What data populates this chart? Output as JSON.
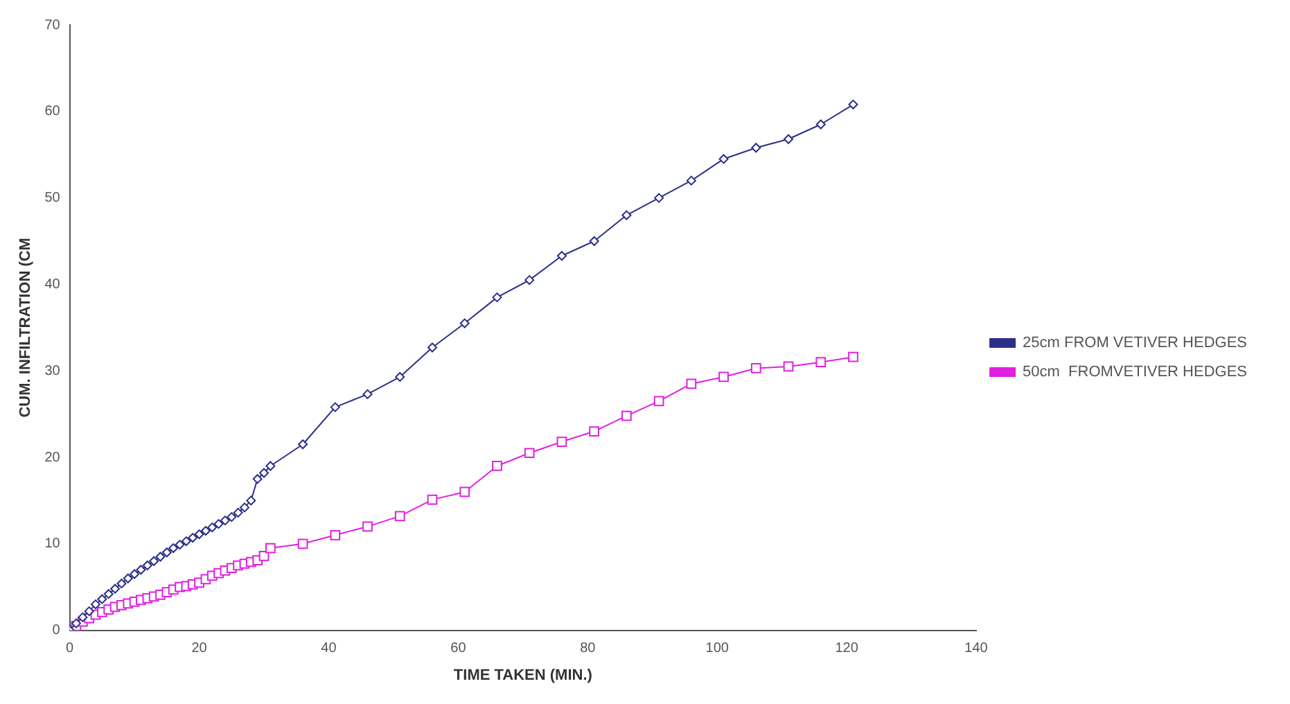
{
  "chart_data": {
    "type": "line",
    "xlabel": "TIME TAKEN (MIN.)",
    "ylabel": "CUM. INFILTRATION (CM",
    "xlim": [
      0,
      140
    ],
    "xticks": [
      0,
      20,
      40,
      60,
      80,
      100,
      120,
      140
    ],
    "ylim": [
      0,
      70
    ],
    "yticks": [
      0,
      10,
      20,
      30,
      40,
      50,
      60,
      70
    ],
    "grid": false,
    "legend": "right",
    "line_style": "solid",
    "series": [
      {
        "name": "25cm FROM VETIVER HEDGES",
        "color": "#2b2f8a",
        "marker": "diamond",
        "x": [
          0,
          1,
          2,
          3,
          4,
          5,
          6,
          7,
          8,
          9,
          10,
          11,
          12,
          13,
          14,
          15,
          16,
          17,
          18,
          19,
          20,
          21,
          22,
          23,
          24,
          25,
          26,
          27,
          28,
          29,
          30,
          31,
          36,
          41,
          46,
          51,
          56,
          61,
          66,
          71,
          76,
          81,
          86,
          91,
          96,
          101,
          106,
          111,
          116,
          121
        ],
        "values": [
          0,
          0.8,
          1.5,
          2.2,
          3,
          3.6,
          4.2,
          4.8,
          5.4,
          6,
          6.5,
          7,
          7.5,
          8,
          8.5,
          9,
          9.5,
          9.9,
          10.3,
          10.7,
          11.1,
          11.5,
          11.9,
          12.3,
          12.7,
          13.1,
          13.6,
          14.2,
          15,
          17.5,
          18.2,
          19,
          21.5,
          25.8,
          27.3,
          29.3,
          32.7,
          35.5,
          38.5,
          40.5,
          43.3,
          45,
          48,
          50,
          52,
          54.5,
          55.8,
          56.8,
          58.5,
          60.8
        ]
      },
      {
        "name": "50cm  FROMVETIVER HEDGES",
        "color": "#e020e0",
        "marker": "square",
        "x": [
          0,
          1,
          2,
          3,
          4,
          5,
          6,
          7,
          8,
          9,
          10,
          11,
          12,
          13,
          14,
          15,
          16,
          17,
          18,
          19,
          20,
          21,
          22,
          23,
          24,
          25,
          26,
          27,
          28,
          29,
          30,
          31,
          36,
          41,
          46,
          51,
          56,
          61,
          66,
          71,
          76,
          81,
          86,
          91,
          96,
          101,
          106,
          111,
          116,
          121
        ],
        "values": [
          0,
          0.5,
          1,
          1.4,
          1.8,
          2.1,
          2.4,
          2.7,
          2.9,
          3.1,
          3.3,
          3.5,
          3.7,
          3.9,
          4.1,
          4.4,
          4.7,
          5,
          5.1,
          5.3,
          5.5,
          5.9,
          6.3,
          6.6,
          6.9,
          7.2,
          7.5,
          7.7,
          7.9,
          8.1,
          8.6,
          9.5,
          10,
          11,
          12,
          13.2,
          15.1,
          16,
          19,
          20.5,
          21.8,
          23,
          24.8,
          26.5,
          28.5,
          29.3,
          30.3,
          30.5,
          31,
          31.6
        ]
      }
    ]
  }
}
